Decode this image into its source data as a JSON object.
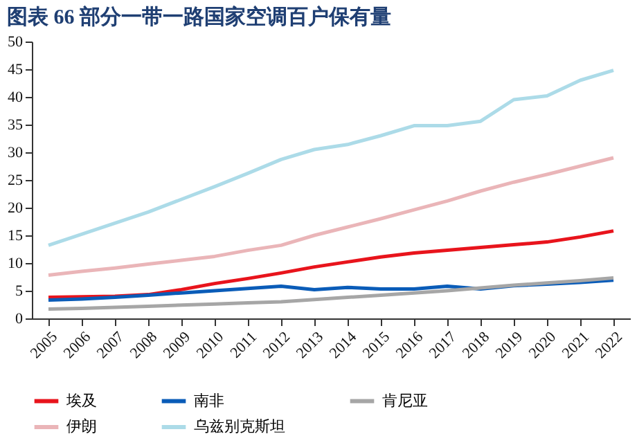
{
  "chart_data": {
    "type": "line",
    "title": "图表 66   部分一带一路国家空调百户保有量",
    "categories": [
      "2005",
      "2006",
      "2007",
      "2008",
      "2009",
      "2010",
      "2011",
      "2012",
      "2013",
      "2014",
      "2015",
      "2016",
      "2017",
      "2018",
      "2019",
      "2020",
      "2021",
      "2022"
    ],
    "series": [
      {
        "name": "埃及",
        "color": "#e8141c",
        "values": [
          3.8,
          3.9,
          4.0,
          4.3,
          5.2,
          6.3,
          7.2,
          8.2,
          9.3,
          10.2,
          11.1,
          11.8,
          12.3,
          12.8,
          13.3,
          13.8,
          14.7,
          15.8
        ]
      },
      {
        "name": "南非",
        "color": "#0a5cb8",
        "values": [
          3.3,
          3.5,
          3.8,
          4.2,
          4.6,
          5.0,
          5.4,
          5.8,
          5.2,
          5.6,
          5.3,
          5.3,
          5.8,
          5.3,
          5.9,
          6.2,
          6.5,
          6.9
        ]
      },
      {
        "name": "肯尼亚",
        "color": "#a6a6a6",
        "values": [
          1.7,
          1.8,
          2.0,
          2.2,
          2.4,
          2.6,
          2.8,
          3.0,
          3.4,
          3.8,
          4.2,
          4.6,
          5.0,
          5.5,
          6.0,
          6.4,
          6.8,
          7.3
        ]
      },
      {
        "name": "伊朗",
        "color": "#eab5b8",
        "values": [
          7.8,
          8.5,
          9.1,
          9.8,
          10.5,
          11.2,
          12.3,
          13.2,
          15.0,
          16.5,
          18.0,
          19.6,
          21.2,
          23.0,
          24.6,
          26.0,
          27.5,
          29.0
        ]
      },
      {
        "name": "乌兹别克斯坦",
        "color": "#acdbe8",
        "values": [
          13.2,
          15.2,
          17.2,
          19.2,
          21.5,
          23.8,
          26.2,
          28.7,
          30.5,
          31.4,
          33.0,
          34.8,
          34.8,
          35.6,
          39.5,
          40.2,
          43.0,
          44.8
        ]
      }
    ],
    "ylim": [
      0,
      50
    ],
    "yticks": [
      0,
      5,
      10,
      15,
      20,
      25,
      30,
      35,
      40,
      45,
      50
    ],
    "grid": false,
    "legend": "bottom",
    "marker": "none",
    "line_style": "solid"
  }
}
